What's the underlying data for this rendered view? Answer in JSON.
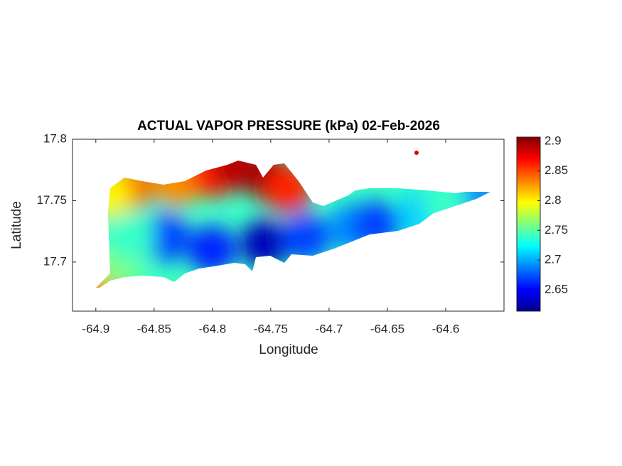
{
  "chart_data": {
    "type": "map",
    "title": "ACTUAL VAPOR PRESSURE (kPa) 02-Feb-2026",
    "x_label": "Longitude",
    "y_label": "Latitude",
    "xlim": [
      -64.92,
      -64.55
    ],
    "ylim": [
      17.66,
      17.8
    ],
    "xticks": [
      -64.9,
      -64.85,
      -64.8,
      -64.75,
      -64.7,
      -64.65,
      -64.6
    ],
    "yticks": [
      17.7,
      17.75,
      17.8
    ],
    "colormap": "jet",
    "clim": [
      2.614,
      2.907
    ],
    "colorbar_ticks": [
      2.65,
      2.7,
      2.75,
      2.8,
      2.85,
      2.9
    ],
    "field": {
      "lon": [
        -64.87,
        -64.83,
        -64.8,
        -64.78,
        -64.75,
        -64.735,
        -64.89,
        -64.9,
        -64.84,
        -64.8,
        -64.755,
        -64.72,
        -64.68,
        -64.66,
        -64.62,
        -64.88,
        -64.87,
        -64.58,
        -64.6,
        -64.625
      ],
      "lat": [
        17.762,
        17.765,
        17.772,
        17.778,
        17.768,
        17.76,
        17.755,
        17.682,
        17.72,
        17.71,
        17.715,
        17.72,
        17.728,
        17.73,
        17.74,
        17.7,
        17.72,
        17.752,
        17.748,
        17.789
      ],
      "value": [
        2.84,
        2.83,
        2.86,
        2.89,
        2.9,
        2.86,
        2.8,
        2.83,
        2.67,
        2.66,
        2.63,
        2.67,
        2.69,
        2.67,
        2.71,
        2.76,
        2.74,
        2.68,
        2.74,
        2.88
      ]
    }
  }
}
